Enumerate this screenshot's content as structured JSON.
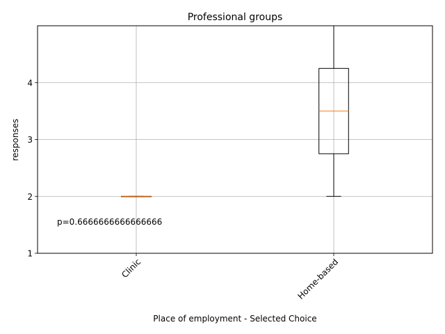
{
  "chart_data": {
    "type": "box",
    "title": "Professional groups",
    "xlabel": "Place of employment - Selected Choice",
    "ylabel": "responses",
    "categories": [
      "Clinic",
      "Home-based"
    ],
    "boxes": [
      {
        "category": "Clinic",
        "whisker_low": 2,
        "q1": 2,
        "median": 2,
        "q3": 2,
        "whisker_high": 2
      },
      {
        "category": "Home-based",
        "whisker_low": 2,
        "q1": 2.75,
        "median": 3.5,
        "q3": 4.25,
        "whisker_high": 5
      }
    ],
    "yticks": [
      "1",
      "2",
      "3",
      "4"
    ],
    "ylim": [
      1,
      5
    ],
    "grid": true,
    "annotation": "p=0.6666666666666666",
    "colors": {
      "box": "#000000",
      "median": "#ff7f0e",
      "grid": "#b0b0b0"
    }
  }
}
